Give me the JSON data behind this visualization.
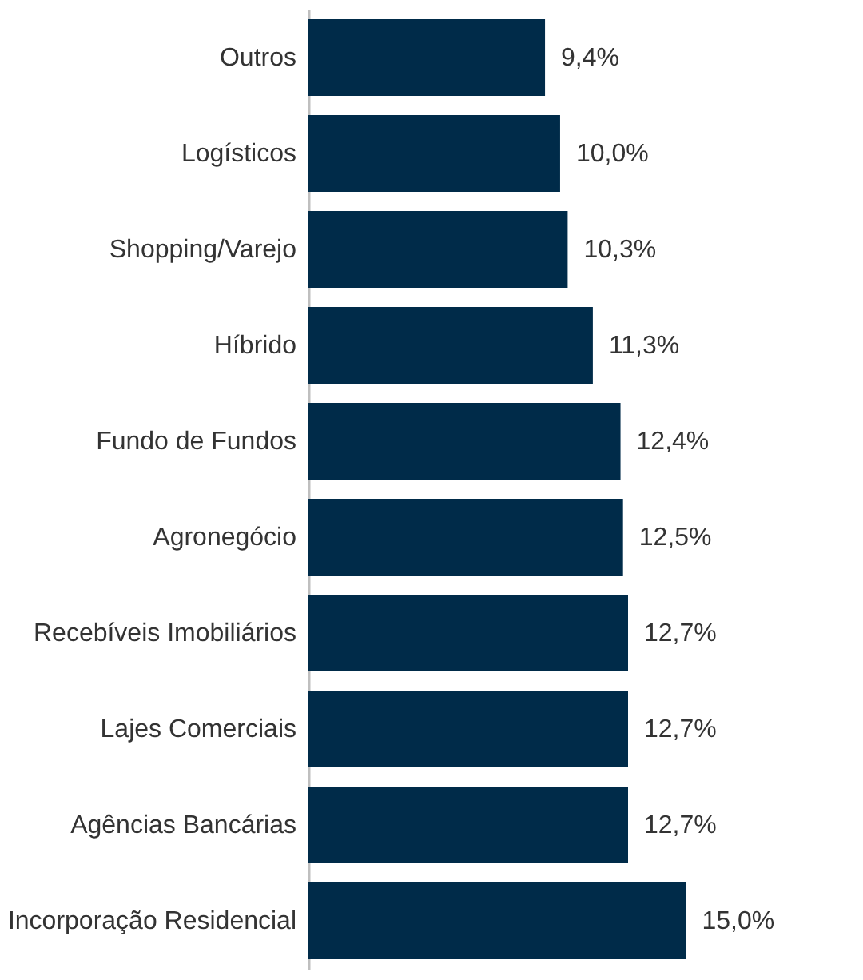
{
  "chart_data": {
    "type": "bar",
    "orientation": "horizontal",
    "categories": [
      "Outros",
      "Logísticos",
      "Shopping/Varejo",
      "Híbrido",
      "Fundo de Fundos",
      "Agronegócio",
      "Recebíveis Imobiliários",
      "Lajes Comerciais",
      "Agências Bancárias",
      "Incorporação Residencial"
    ],
    "values": [
      9.4,
      10.0,
      10.3,
      11.3,
      12.4,
      12.5,
      12.7,
      12.7,
      12.7,
      15.0
    ],
    "value_labels": [
      "9,4%",
      "10,0%",
      "10,3%",
      "11,3%",
      "12,4%",
      "12,5%",
      "12,7%",
      "12,7%",
      "12,7%",
      "15,0%"
    ],
    "color": "#002b49",
    "grid": false,
    "tick_labels": "y"
  }
}
